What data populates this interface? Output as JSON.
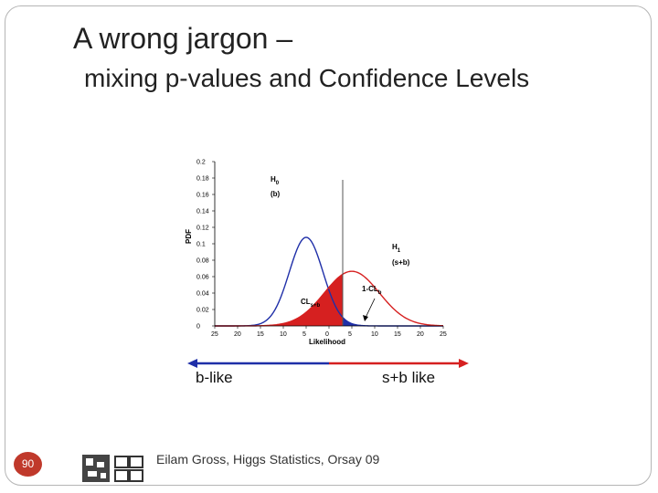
{
  "slide": {
    "title_line1": "A wrong jargon –",
    "title_line2": "mixing p-values and Confidence Levels",
    "page_number": "90",
    "footer": "Eilam Gross, Higgs Statistics, Orsay 09",
    "left_label": "b-like",
    "right_label": "s+b like",
    "colors": {
      "left_arrow": "#1f2fa8",
      "right_arrow": "#d62020",
      "badge": "#c0392b"
    }
  },
  "chart_data": {
    "type": "line",
    "xlabel": "Likelihood",
    "ylabel": "PDF",
    "x_tick_labels": [
      "25",
      "20",
      "15",
      "10",
      "5",
      "0",
      "5",
      "10",
      "15",
      "20",
      "25"
    ],
    "y_tick_labels": [
      "0",
      "0.02",
      "0.04",
      "0.06",
      "0.08",
      "0.1",
      "0.12",
      "0.14",
      "0.16",
      "0.18",
      "0.2"
    ],
    "ylim": [
      0,
      0.2
    ],
    "series": [
      {
        "name": "H0 (b)",
        "color": "#1f2fa8",
        "mean": -5,
        "sd": 3.7
      },
      {
        "name": "H1 (s+b)",
        "color": "#d62020",
        "mean": 5,
        "sd": 6
      }
    ],
    "observed_x": 3,
    "annotations": {
      "h0_label": "H",
      "h0_sub": "0",
      "h0_desc": "(b)",
      "h1_label": "H",
      "h1_sub": "1",
      "h1_desc": "(s+b)",
      "cl_label": "1-CL",
      "cl_sub": "b",
      "cls_label": "CL",
      "cls_sub": "s+b"
    }
  }
}
